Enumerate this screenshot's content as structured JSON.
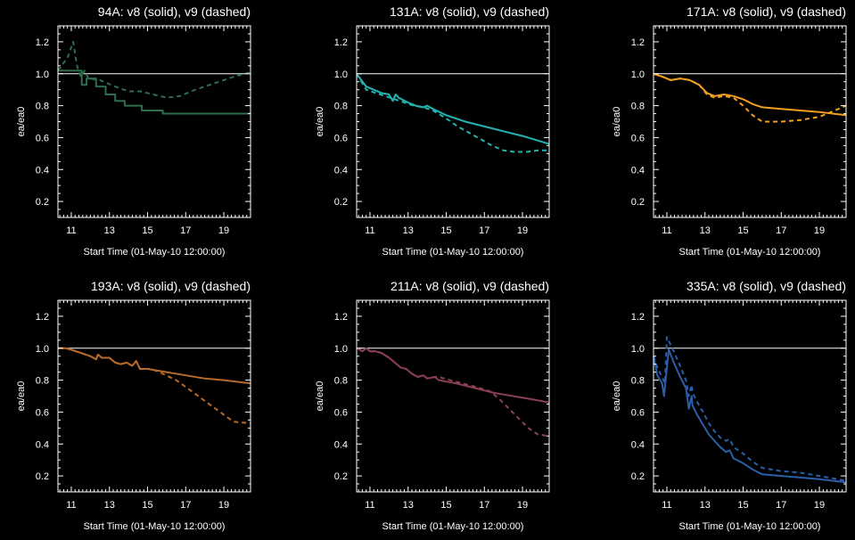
{
  "chart_data": [
    {
      "type": "line",
      "title": "94A: v8 (solid), v9 (dashed)",
      "xlabel": "Start Time (01-May-10 12:00:00)",
      "ylabel": "ea/ea0",
      "xlim": [
        10.3,
        20.4
      ],
      "ylim": [
        0.1,
        1.3
      ],
      "xticks": [
        11,
        13,
        15,
        17,
        19
      ],
      "yticks": [
        0.2,
        0.4,
        0.6,
        0.8,
        1.0,
        1.2
      ],
      "xtick_labels": [
        "11",
        "13",
        "15",
        "17",
        "19"
      ],
      "ytick_labels": [
        "0.2",
        "0.4",
        "0.6",
        "0.8",
        "1.0",
        "1.2"
      ],
      "reference_line": 1.0,
      "color": "#2e6e4c",
      "series": [
        {
          "style": "solid",
          "step": true,
          "x": [
            10.3,
            11.3,
            11.55,
            11.8,
            12.3,
            12.8,
            13.3,
            13.8,
            14.7,
            15.8,
            20.4
          ],
          "y": [
            1.02,
            1.02,
            0.93,
            0.97,
            0.92,
            0.87,
            0.83,
            0.8,
            0.77,
            0.75,
            0.75
          ]
        },
        {
          "style": "dashed",
          "step": false,
          "x": [
            10.3,
            10.8,
            11.1,
            11.3,
            11.5,
            11.7,
            11.9,
            12.5,
            13.3,
            14.0,
            14.6,
            15.3,
            16.0,
            16.7,
            17.5,
            18.5,
            19.5,
            20.4
          ],
          "y": [
            1.02,
            1.1,
            1.2,
            1.05,
            0.98,
            1.02,
            0.97,
            0.96,
            0.92,
            0.89,
            0.89,
            0.87,
            0.85,
            0.86,
            0.9,
            0.94,
            0.98,
            1.01
          ]
        }
      ]
    },
    {
      "type": "line",
      "title": "131A: v8 (solid), v9 (dashed)",
      "xlabel": "Start Time (01-May-10 12:00:00)",
      "ylabel": "ea/ea0",
      "xlim": [
        10.3,
        20.4
      ],
      "ylim": [
        0.1,
        1.3
      ],
      "xticks": [
        11,
        13,
        15,
        17,
        19
      ],
      "yticks": [
        0.2,
        0.4,
        0.6,
        0.8,
        1.0,
        1.2
      ],
      "xtick_labels": [
        "11",
        "13",
        "15",
        "17",
        "19"
      ],
      "ytick_labels": [
        "0.2",
        "0.4",
        "0.6",
        "0.8",
        "1.0",
        "1.2"
      ],
      "reference_line": 1.0,
      "color": "#20b5b0",
      "series": [
        {
          "style": "solid",
          "step": false,
          "x": [
            10.3,
            10.8,
            11.2,
            11.6,
            12.0,
            12.2,
            12.35,
            12.5,
            13.0,
            13.4,
            13.8,
            14.0,
            14.3,
            15.0,
            16.0,
            17.0,
            18.0,
            19.0,
            20.4
          ],
          "y": [
            1.0,
            0.92,
            0.9,
            0.88,
            0.87,
            0.83,
            0.87,
            0.85,
            0.82,
            0.8,
            0.79,
            0.8,
            0.78,
            0.74,
            0.7,
            0.67,
            0.64,
            0.61,
            0.56
          ]
        },
        {
          "style": "dashed",
          "step": false,
          "x": [
            10.3,
            10.8,
            11.3,
            11.8,
            12.3,
            12.8,
            13.3,
            13.8,
            14.3,
            15.0,
            15.6,
            16.2,
            16.8,
            17.4,
            18.0,
            18.6,
            19.2,
            19.8,
            20.4
          ],
          "y": [
            1.0,
            0.9,
            0.88,
            0.86,
            0.84,
            0.82,
            0.8,
            0.79,
            0.77,
            0.72,
            0.67,
            0.63,
            0.59,
            0.55,
            0.52,
            0.51,
            0.51,
            0.52,
            0.52
          ]
        }
      ]
    },
    {
      "type": "line",
      "title": "171A: v8 (solid), v9 (dashed)",
      "xlabel": "Start Time (01-May-10 12:00:00)",
      "ylabel": "ea/ea0",
      "xlim": [
        10.3,
        20.4
      ],
      "ylim": [
        0.1,
        1.3
      ],
      "xticks": [
        11,
        13,
        15,
        17,
        19
      ],
      "yticks": [
        0.2,
        0.4,
        0.6,
        0.8,
        1.0,
        1.2
      ],
      "xtick_labels": [
        "11",
        "13",
        "15",
        "17",
        "19"
      ],
      "ytick_labels": [
        "0.2",
        "0.4",
        "0.6",
        "0.8",
        "1.0",
        "1.2"
      ],
      "reference_line": 1.0,
      "color": "#f0a020",
      "series": [
        {
          "style": "solid",
          "step": false,
          "x": [
            10.3,
            10.8,
            11.2,
            11.7,
            12.2,
            12.7,
            13.1,
            13.5,
            14.0,
            14.5,
            15.0,
            15.5,
            16.0,
            17.0,
            18.0,
            19.0,
            20.4
          ],
          "y": [
            1.0,
            0.98,
            0.96,
            0.97,
            0.96,
            0.93,
            0.88,
            0.86,
            0.87,
            0.86,
            0.84,
            0.81,
            0.79,
            0.78,
            0.77,
            0.76,
            0.74
          ]
        },
        {
          "style": "dashed",
          "step": false,
          "x": [
            10.3,
            10.8,
            11.2,
            11.7,
            12.2,
            12.7,
            13.1,
            13.5,
            14.0,
            14.5,
            15.0,
            15.5,
            16.0,
            17.0,
            18.0,
            19.0,
            19.8,
            20.4
          ],
          "y": [
            1.0,
            0.98,
            0.96,
            0.97,
            0.96,
            0.93,
            0.87,
            0.85,
            0.86,
            0.85,
            0.8,
            0.74,
            0.7,
            0.7,
            0.71,
            0.73,
            0.77,
            0.8
          ]
        }
      ]
    },
    {
      "type": "line",
      "title": "193A: v8 (solid), v9 (dashed)",
      "xlabel": "Start Time (01-May-10 12:00:00)",
      "ylabel": "ea/ea0",
      "xlim": [
        10.3,
        20.4
      ],
      "ylim": [
        0.1,
        1.3
      ],
      "xticks": [
        11,
        13,
        15,
        17,
        19
      ],
      "yticks": [
        0.2,
        0.4,
        0.6,
        0.8,
        1.0,
        1.2
      ],
      "xtick_labels": [
        "11",
        "13",
        "15",
        "17",
        "19"
      ],
      "ytick_labels": [
        "0.2",
        "0.4",
        "0.6",
        "0.8",
        "1.0",
        "1.2"
      ],
      "reference_line": 1.0,
      "color": "#b86a2a",
      "series": [
        {
          "style": "solid",
          "step": false,
          "x": [
            10.3,
            10.7,
            11.0,
            11.5,
            12.0,
            12.3,
            12.4,
            12.6,
            13.0,
            13.3,
            13.6,
            13.9,
            14.2,
            14.4,
            14.6,
            15.0,
            16.0,
            17.0,
            18.0,
            19.0,
            20.4
          ],
          "y": [
            1.0,
            1.0,
            0.99,
            0.97,
            0.95,
            0.93,
            0.96,
            0.94,
            0.94,
            0.91,
            0.9,
            0.91,
            0.89,
            0.92,
            0.87,
            0.87,
            0.85,
            0.83,
            0.81,
            0.8,
            0.78
          ]
        },
        {
          "style": "dashed",
          "step": false,
          "x": [
            10.3,
            10.7,
            11.0,
            11.5,
            12.0,
            12.3,
            12.4,
            12.6,
            13.0,
            13.3,
            13.6,
            13.9,
            14.2,
            14.4,
            14.6,
            15.2,
            15.8,
            16.5,
            17.2,
            18.0,
            18.8,
            19.5,
            20.4
          ],
          "y": [
            1.0,
            1.0,
            0.99,
            0.97,
            0.95,
            0.93,
            0.96,
            0.94,
            0.94,
            0.91,
            0.9,
            0.91,
            0.89,
            0.92,
            0.87,
            0.87,
            0.84,
            0.8,
            0.74,
            0.67,
            0.6,
            0.54,
            0.53
          ]
        }
      ]
    },
    {
      "type": "line",
      "title": "211A: v8 (solid), v9 (dashed)",
      "xlabel": "Start Time (01-May-10 12:00:00)",
      "ylabel": "ea/ea0",
      "xlim": [
        10.3,
        20.4
      ],
      "ylim": [
        0.1,
        1.3
      ],
      "xticks": [
        11,
        13,
        15,
        17,
        19
      ],
      "yticks": [
        0.2,
        0.4,
        0.6,
        0.8,
        1.0,
        1.2
      ],
      "xtick_labels": [
        "11",
        "13",
        "15",
        "17",
        "19"
      ],
      "ytick_labels": [
        "0.2",
        "0.4",
        "0.6",
        "0.8",
        "1.0",
        "1.2"
      ],
      "reference_line": 1.0,
      "color": "#8a3f52",
      "series": [
        {
          "style": "solid",
          "step": false,
          "x": [
            10.3,
            10.6,
            10.8,
            11.0,
            11.3,
            11.6,
            12.0,
            12.3,
            12.6,
            12.9,
            13.2,
            13.5,
            13.8,
            14.0,
            14.4,
            14.6,
            15.5,
            16.5,
            17.5,
            18.5,
            19.5,
            20.4
          ],
          "y": [
            1.0,
            0.98,
            1.0,
            0.98,
            0.98,
            0.97,
            0.94,
            0.91,
            0.88,
            0.87,
            0.84,
            0.82,
            0.83,
            0.81,
            0.82,
            0.8,
            0.78,
            0.75,
            0.72,
            0.7,
            0.68,
            0.66
          ]
        },
        {
          "style": "dashed",
          "step": false,
          "x": [
            10.3,
            10.6,
            10.8,
            11.0,
            11.3,
            11.6,
            12.0,
            12.3,
            12.6,
            12.9,
            13.2,
            13.5,
            13.8,
            14.0,
            14.4,
            14.6,
            15.5,
            16.5,
            17.3,
            17.8,
            18.3,
            18.8,
            19.3,
            19.8,
            20.4
          ],
          "y": [
            1.0,
            0.98,
            1.0,
            0.98,
            0.98,
            0.97,
            0.94,
            0.91,
            0.88,
            0.87,
            0.84,
            0.82,
            0.83,
            0.81,
            0.82,
            0.82,
            0.79,
            0.76,
            0.73,
            0.68,
            0.62,
            0.56,
            0.5,
            0.46,
            0.45
          ]
        }
      ]
    },
    {
      "type": "line",
      "title": "335A: v8 (solid), v9 (dashed)",
      "xlabel": "Start Time (01-May-10 12:00:00)",
      "ylabel": "ea/ea0",
      "xlim": [
        10.3,
        20.4
      ],
      "ylim": [
        0.1,
        1.3
      ],
      "xticks": [
        11,
        13,
        15,
        17,
        19
      ],
      "yticks": [
        0.2,
        0.4,
        0.6,
        0.8,
        1.0,
        1.2
      ],
      "xtick_labels": [
        "11",
        "13",
        "15",
        "17",
        "19"
      ],
      "ytick_labels": [
        "0.2",
        "0.4",
        "0.6",
        "0.8",
        "1.0",
        "1.2"
      ],
      "reference_line": 1.0,
      "color": "#2a5ea8",
      "series": [
        {
          "style": "solid",
          "step": false,
          "x": [
            10.3,
            10.5,
            10.75,
            10.85,
            11.1,
            11.4,
            11.7,
            12.0,
            12.15,
            12.3,
            12.35,
            12.6,
            12.9,
            13.2,
            13.5,
            13.8,
            14.1,
            14.3,
            14.5,
            15.0,
            15.5,
            16.0,
            17.0,
            18.0,
            19.0,
            20.4
          ],
          "y": [
            0.95,
            0.83,
            0.78,
            0.7,
            0.99,
            0.9,
            0.82,
            0.75,
            0.62,
            0.7,
            0.64,
            0.58,
            0.52,
            0.46,
            0.42,
            0.38,
            0.35,
            0.36,
            0.31,
            0.28,
            0.24,
            0.21,
            0.2,
            0.19,
            0.18,
            0.16
          ]
        },
        {
          "style": "dashed",
          "step": false,
          "x": [
            10.3,
            10.5,
            10.75,
            10.9,
            11.0,
            11.4,
            11.7,
            12.0,
            12.15,
            12.3,
            12.35,
            12.6,
            12.9,
            13.2,
            13.5,
            13.8,
            14.1,
            14.3,
            14.5,
            15.0,
            15.5,
            16.0,
            17.0,
            18.0,
            19.0,
            20.4
          ],
          "y": [
            0.95,
            0.88,
            0.82,
            0.78,
            1.07,
            0.97,
            0.89,
            0.8,
            0.7,
            0.77,
            0.72,
            0.66,
            0.6,
            0.53,
            0.48,
            0.44,
            0.42,
            0.43,
            0.38,
            0.34,
            0.29,
            0.25,
            0.23,
            0.22,
            0.2,
            0.17
          ]
        }
      ]
    }
  ]
}
